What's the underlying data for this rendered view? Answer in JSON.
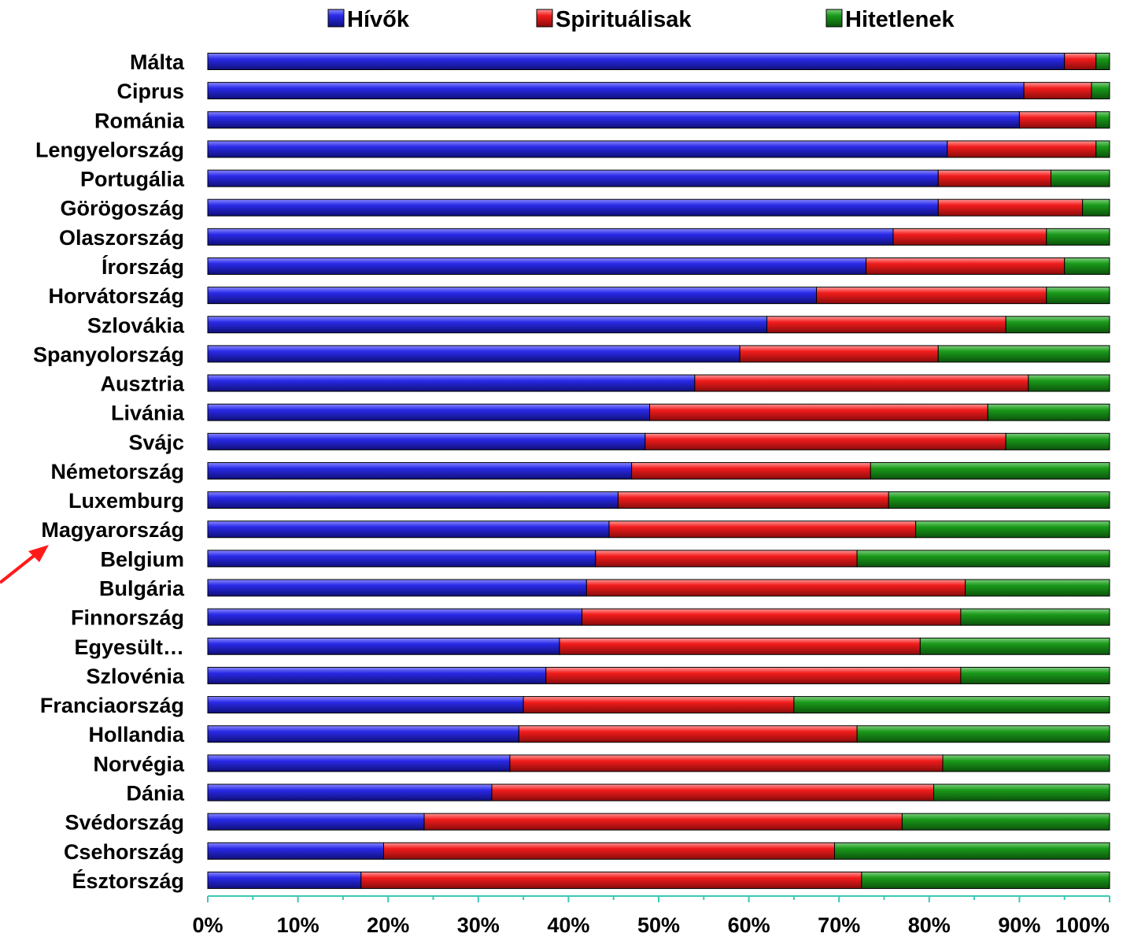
{
  "chart_data": {
    "type": "bar",
    "orientation": "horizontal",
    "stacked": "percent",
    "categories": [
      "Málta",
      "Ciprus",
      "Románia",
      "Lengyelország",
      "Portugália",
      "Görögoszág",
      "Olaszország",
      "Írország",
      "Horvátország",
      "Szlovákia",
      "Spanyolország",
      "Ausztria",
      "Livánia",
      "Svájc",
      "Németország",
      "Luxemburg",
      "Magyarország",
      "Belgium",
      "Bulgária",
      "Finnország",
      "Egyesült…",
      "Szlovénia",
      "Franciaország",
      "Hollandia",
      "Norvégia",
      "Dánia",
      "Svédország",
      "Csehország",
      "Észtország"
    ],
    "series": [
      {
        "name": "Hívők",
        "color": "#1a1adc",
        "values": [
          95,
          90.5,
          90,
          82,
          81,
          81,
          76,
          73,
          67.5,
          62,
          59,
          54,
          49,
          48.5,
          47,
          45.5,
          44.5,
          43,
          42,
          41.5,
          39,
          37.5,
          35,
          34.5,
          33.5,
          31.5,
          24,
          19.5,
          17
        ]
      },
      {
        "name": "Spirituálisak",
        "color": "#ee1a1a",
        "values": [
          3.5,
          7.5,
          8.5,
          16.5,
          12.5,
          16,
          17,
          22,
          25.5,
          26.5,
          22,
          37,
          37.5,
          40,
          26.5,
          30,
          34,
          29,
          42,
          42,
          40,
          46,
          30,
          37.5,
          48,
          49,
          53,
          50,
          55.5
        ]
      },
      {
        "name": "Hitetlenek",
        "color": "#179117",
        "values": [
          1.5,
          2,
          1.5,
          1.5,
          6.5,
          3,
          7,
          5,
          7,
          11.5,
          19,
          9,
          13.5,
          11.5,
          26.5,
          24.5,
          21.5,
          28,
          16,
          16.5,
          21,
          16.5,
          35,
          28,
          18.5,
          19.5,
          23,
          30.5,
          27.5
        ]
      }
    ],
    "xlim": [
      0,
      100
    ],
    "x_ticks": [
      "0%",
      "10%",
      "20%",
      "30%",
      "40%",
      "50%",
      "60%",
      "70%",
      "80%",
      "90%",
      "100%"
    ],
    "legend_position": "top",
    "annotation": "red-arrow-pointing-to-Magyarország"
  }
}
